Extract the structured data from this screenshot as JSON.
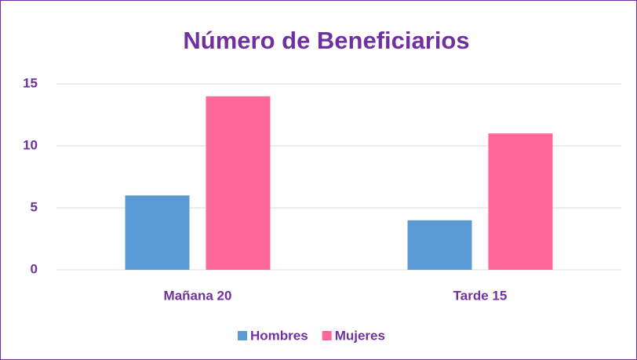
{
  "chart_data": {
    "type": "bar",
    "title": "Número de Beneficiarios",
    "categories": [
      "Mañana 20",
      "Tarde 15"
    ],
    "series": [
      {
        "name": "Hombres",
        "color": "#5b9bd5",
        "values": [
          6,
          4
        ]
      },
      {
        "name": "Mujeres",
        "color": "#ff6699",
        "values": [
          14,
          11
        ]
      }
    ],
    "ylim": [
      0,
      15
    ],
    "yticks": [
      0,
      5,
      10,
      15
    ],
    "grid": true,
    "legend": "bottom"
  }
}
